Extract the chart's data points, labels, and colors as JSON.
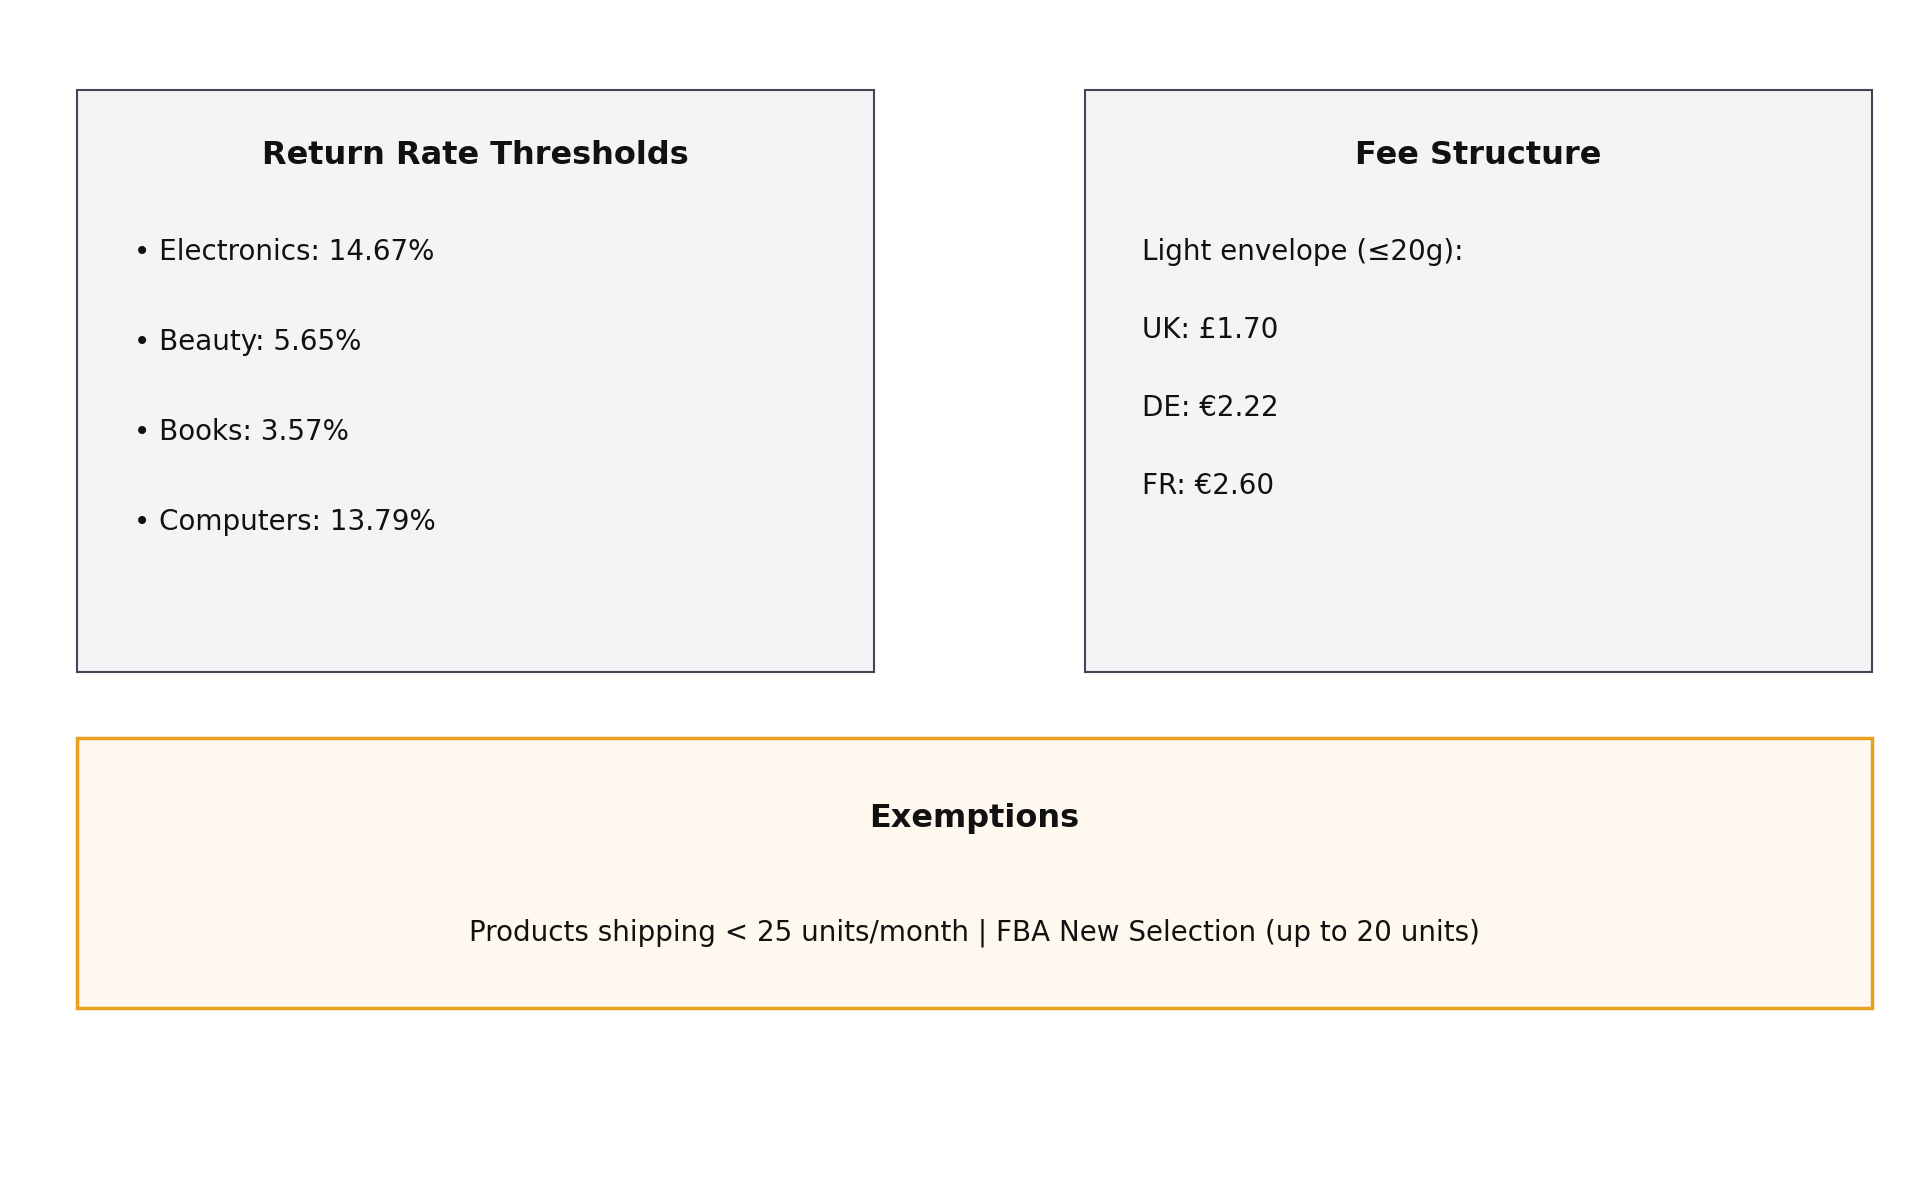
{
  "bg_color": "#ffffff",
  "left_box": {
    "title": "Return Rate Thresholds",
    "bg_color": "#f4f4f6",
    "border_color": "#444455",
    "items": [
      "• Electronics: 14.67%",
      "• Beauty: 5.65%",
      "• Books: 3.57%",
      "• Computers: 13.79%"
    ]
  },
  "right_box": {
    "title": "Fee Structure",
    "bg_color": "#f4f4f6",
    "border_color": "#444455",
    "header": "Light envelope (≤20g):",
    "items": [
      "UK: £1.70",
      "DE: €2.22",
      "FR: €2.60"
    ]
  },
  "bottom_box": {
    "title": "Exemptions",
    "bg_color": "#fff8ee",
    "border_color": "#e8a020",
    "text": "Products shipping < 25 units/month | FBA New Selection (up to 20 units)"
  },
  "title_fontsize": 23,
  "item_fontsize": 20,
  "exemption_title_fontsize": 23,
  "exemption_text_fontsize": 20
}
